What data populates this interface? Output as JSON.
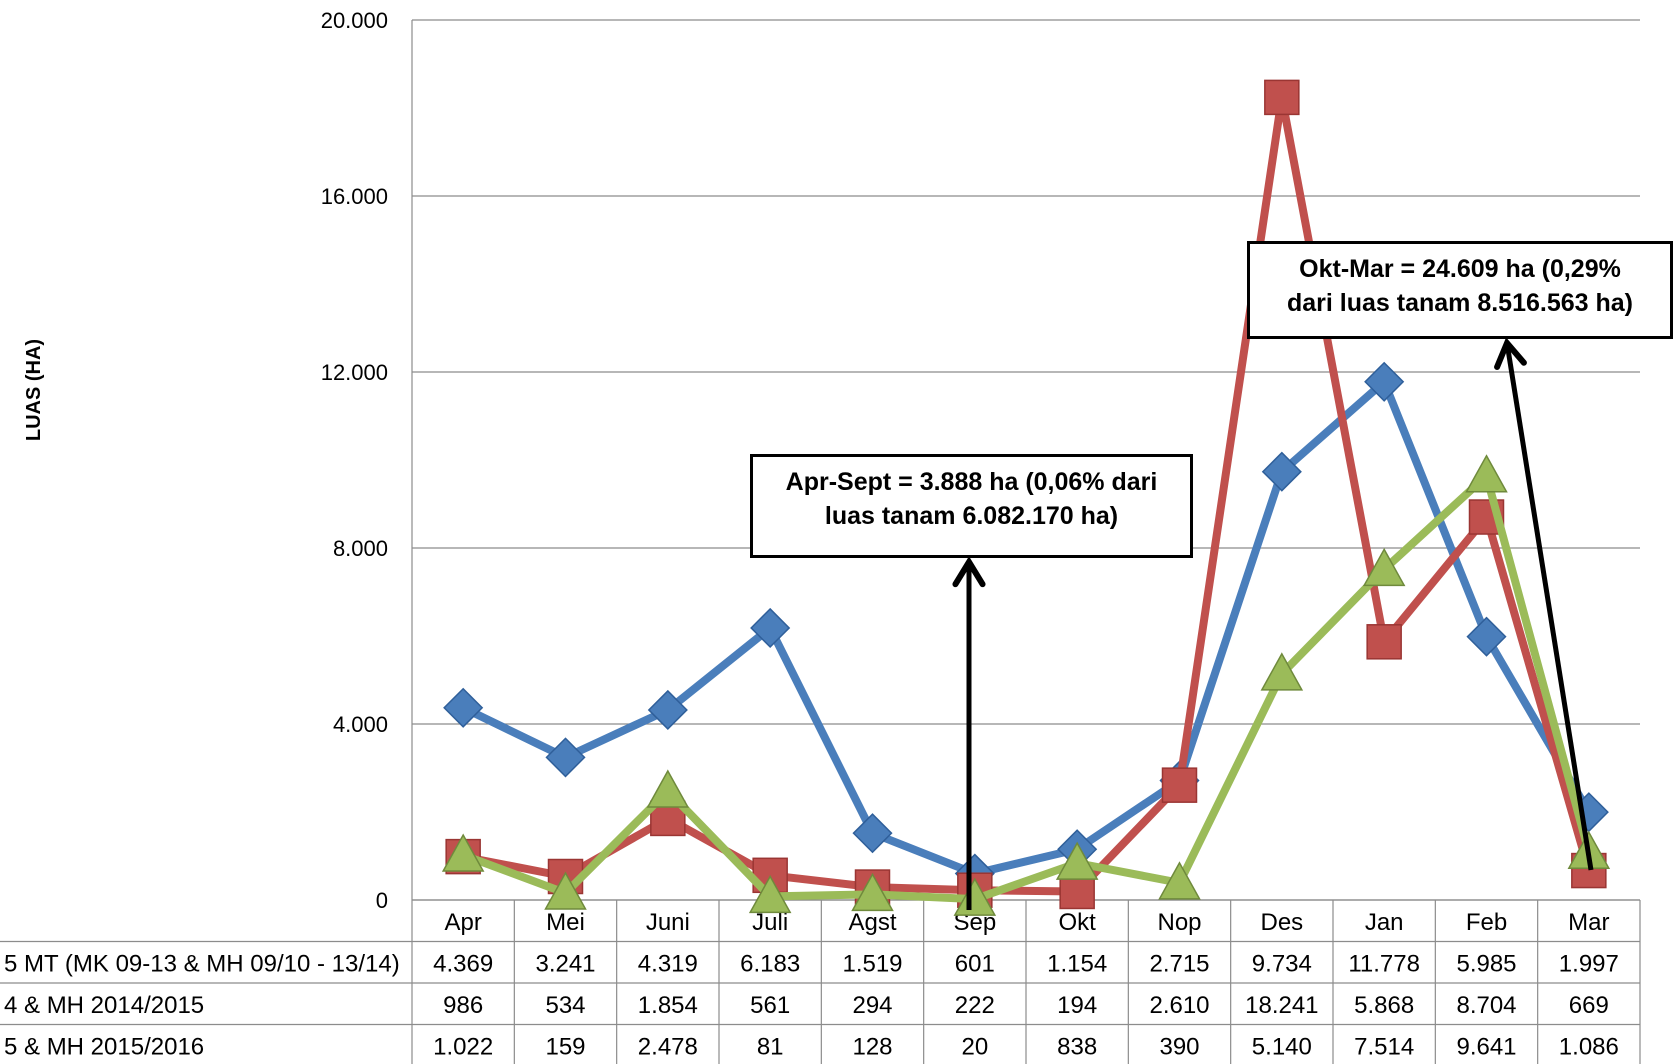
{
  "chart_data": {
    "type": "line",
    "ylabel": "LUAS (HA)",
    "ylim": [
      0,
      20000
    ],
    "yticks": [
      0,
      4000,
      8000,
      12000,
      16000,
      20000
    ],
    "ytick_labels": [
      "0",
      "4.000",
      "8.000",
      "12.000",
      "16.000",
      "20.000"
    ],
    "grid": true,
    "categories": [
      "Apr",
      "Mei",
      "Juni",
      "Juli",
      "Agst",
      "Sep",
      "Okt",
      "Nop",
      "Des",
      "Jan",
      "Feb",
      "Mar"
    ],
    "series": [
      {
        "name": "5 MT (MK 09-13 & MH 09/10 - 13/14)",
        "color": "#4a7ebb",
        "marker": "diamond",
        "values": [
          4369,
          3241,
          4319,
          6183,
          1519,
          601,
          1154,
          2715,
          9734,
          11778,
          5985,
          1997
        ],
        "labels": [
          "4.369",
          "3.241",
          "4.319",
          "6.183",
          "1.519",
          "601",
          "1.154",
          "2.715",
          "9.734",
          "11.778",
          "5.985",
          "1.997"
        ]
      },
      {
        "name": "4 & MH 2014/2015",
        "color": "#c0504d",
        "marker": "square",
        "values": [
          986,
          534,
          1854,
          561,
          294,
          222,
          194,
          2610,
          18241,
          5868,
          8704,
          669
        ],
        "labels": [
          "986",
          "534",
          "1.854",
          "561",
          "294",
          "222",
          "194",
          "2.610",
          "18.241",
          "5.868",
          "8.704",
          "669"
        ]
      },
      {
        "name": "5 & MH 2015/2016",
        "color": "#9bbb59",
        "marker": "triangle",
        "values": [
          1022,
          159,
          2478,
          81,
          128,
          20,
          838,
          390,
          5140,
          7514,
          9641,
          1086
        ],
        "labels": [
          "1.022",
          "159",
          "2.478",
          "81",
          "128",
          "20",
          "838",
          "390",
          "5.140",
          "7.514",
          "9.641",
          "1.086"
        ]
      }
    ],
    "annotations": [
      {
        "lines": [
          "Apr-Sept = 3.888 ha (0,06% dari",
          "luas tanam 6.082.170 ha)"
        ]
      },
      {
        "lines": [
          "Okt-Mar  = 24.609 ha (0,29%",
          "dari luas tanam 8.516.563 ha)"
        ]
      }
    ]
  }
}
